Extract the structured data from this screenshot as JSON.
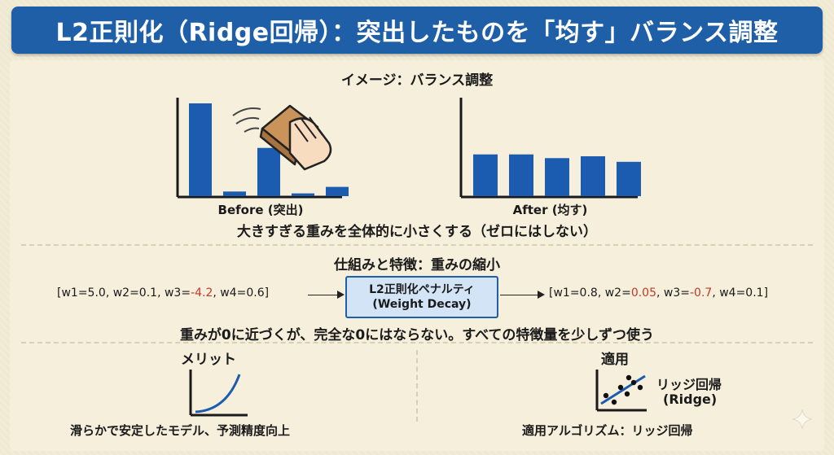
{
  "title": "L2正則化（Ridge回帰）：突出したものを「均す」バランス調整",
  "image_section": {
    "heading": "イメージ：バランス調整",
    "before_label": "Before (突出)",
    "after_label": "After (均す)",
    "before_bars": [
      1.0,
      0.05,
      0.52,
      0.03,
      0.1
    ],
    "after_bars": [
      0.45,
      0.45,
      0.41,
      0.43,
      0.37
    ],
    "bar_color": "#1b5cb0",
    "hand_icon": "hand-wiping-sponge-icon",
    "summary": "大きすぎる重みを全体的に小さくする（ゼロにはしない）"
  },
  "mechanism_section": {
    "heading": "仕組みと特徴：重みの縮小",
    "before_weights": {
      "prefix": "[w1=5.0, w2=0.1, w3=",
      "highlight": "-4.2",
      "suffix": ", w4=0.6]"
    },
    "penalty_line1": "L2正則化ペナルティ",
    "penalty_line2": "(Weight Decay)",
    "after_weights": {
      "p1": "[w1=0.8, w2=",
      "h1": "0.05",
      "p2": ", w3=",
      "h2": "-0.7",
      "p3": ", w4=0.1]"
    },
    "highlight_color": "#c0392b",
    "summary": "重みが0に近づくが、完全な0にはならない。すべての特徴量を少しずつ使う"
  },
  "merit_section": {
    "heading": "メリット",
    "caption": "滑らかで安定したモデル、予測精度向上"
  },
  "application_section": {
    "heading": "適用",
    "chart_label_line1": "リッジ回帰",
    "chart_label_line2": "(Ridge)",
    "caption": "適用アルゴリズム：リッジ回帰"
  },
  "accent_color": "#1e5fa8"
}
